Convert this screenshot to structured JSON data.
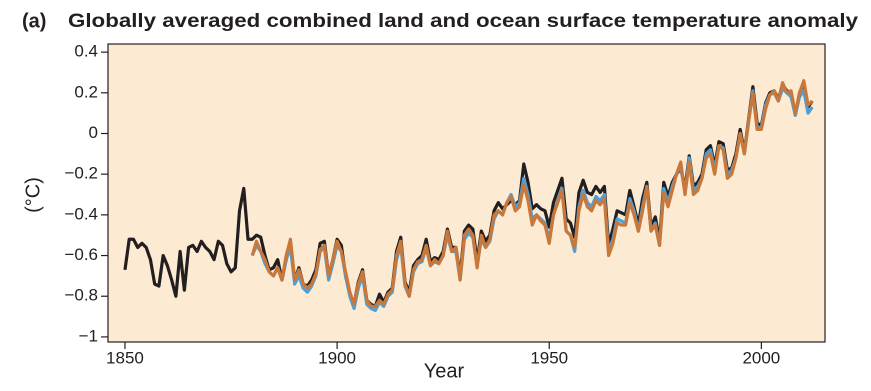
{
  "chart_data": {
    "type": "line",
    "panel_label": "(a)",
    "title": "Globally averaged combined land and ocean surface temperature anomaly",
    "xlabel": "Year",
    "ylabel": "(°C)",
    "xlim": [
      1846,
      2015
    ],
    "xticks": [
      1850,
      1900,
      1950,
      2000
    ],
    "ylim": [
      -1.025,
      0.44
    ],
    "yticks": [
      0.4,
      0.2,
      0,
      {
        "value": -0.2,
        "label": "−0.2"
      },
      {
        "value": -0.4,
        "label": "−0.4"
      },
      {
        "value": -0.6,
        "label": "−0.6"
      },
      {
        "value": -0.8,
        "label": "−0.8"
      },
      {
        "value": -1,
        "label": "−1"
      }
    ],
    "background": "#fcebd2",
    "x": [
      1850,
      1851,
      1852,
      1853,
      1854,
      1855,
      1856,
      1857,
      1858,
      1859,
      1860,
      1861,
      1862,
      1863,
      1864,
      1865,
      1866,
      1867,
      1868,
      1869,
      1870,
      1871,
      1872,
      1873,
      1874,
      1875,
      1876,
      1877,
      1878,
      1879,
      1880,
      1881,
      1882,
      1883,
      1884,
      1885,
      1886,
      1887,
      1888,
      1889,
      1890,
      1891,
      1892,
      1893,
      1894,
      1895,
      1896,
      1897,
      1898,
      1899,
      1900,
      1901,
      1902,
      1903,
      1904,
      1905,
      1906,
      1907,
      1908,
      1909,
      1910,
      1911,
      1912,
      1913,
      1914,
      1915,
      1916,
      1917,
      1918,
      1919,
      1920,
      1921,
      1922,
      1923,
      1924,
      1925,
      1926,
      1927,
      1928,
      1929,
      1930,
      1931,
      1932,
      1933,
      1934,
      1935,
      1936,
      1937,
      1938,
      1939,
      1940,
      1941,
      1942,
      1943,
      1944,
      1945,
      1946,
      1947,
      1948,
      1949,
      1950,
      1951,
      1952,
      1953,
      1954,
      1955,
      1956,
      1957,
      1958,
      1959,
      1960,
      1961,
      1962,
      1963,
      1964,
      1965,
      1966,
      1967,
      1968,
      1969,
      1970,
      1971,
      1972,
      1973,
      1974,
      1975,
      1976,
      1977,
      1978,
      1979,
      1980,
      1981,
      1982,
      1983,
      1984,
      1985,
      1986,
      1987,
      1988,
      1989,
      1990,
      1991,
      1992,
      1993,
      1994,
      1995,
      1996,
      1997,
      1998,
      1999,
      2000,
      2001,
      2002,
      2003,
      2004,
      2005,
      2006,
      2007,
      2008,
      2009,
      2010,
      2011,
      2012
    ],
    "series": [
      {
        "color": "#231f20",
        "values": [
          -0.67,
          -0.52,
          -0.52,
          -0.56,
          -0.54,
          -0.56,
          -0.62,
          -0.74,
          -0.75,
          -0.6,
          -0.65,
          -0.72,
          -0.8,
          -0.58,
          -0.77,
          -0.56,
          -0.55,
          -0.58,
          -0.53,
          -0.56,
          -0.58,
          -0.62,
          -0.53,
          -0.55,
          -0.64,
          -0.68,
          -0.66,
          -0.38,
          -0.27,
          -0.52,
          -0.52,
          -0.5,
          -0.51,
          -0.6,
          -0.67,
          -0.66,
          -0.62,
          -0.72,
          -0.62,
          -0.53,
          -0.72,
          -0.66,
          -0.74,
          -0.75,
          -0.72,
          -0.67,
          -0.54,
          -0.53,
          -0.7,
          -0.62,
          -0.52,
          -0.55,
          -0.7,
          -0.79,
          -0.84,
          -0.73,
          -0.67,
          -0.82,
          -0.84,
          -0.85,
          -0.79,
          -0.83,
          -0.78,
          -0.76,
          -0.58,
          -0.51,
          -0.73,
          -0.78,
          -0.65,
          -0.62,
          -0.6,
          -0.52,
          -0.63,
          -0.61,
          -0.62,
          -0.58,
          -0.47,
          -0.56,
          -0.56,
          -0.7,
          -0.48,
          -0.45,
          -0.47,
          -0.63,
          -0.48,
          -0.53,
          -0.5,
          -0.38,
          -0.34,
          -0.37,
          -0.35,
          -0.33,
          -0.35,
          -0.33,
          -0.15,
          -0.24,
          -0.37,
          -0.35,
          -0.37,
          -0.38,
          -0.46,
          -0.34,
          -0.28,
          -0.22,
          -0.42,
          -0.44,
          -0.51,
          -0.29,
          -0.23,
          -0.29,
          -0.3,
          -0.26,
          -0.29,
          -0.26,
          -0.55,
          -0.47,
          -0.38,
          -0.39,
          -0.4,
          -0.28,
          -0.36,
          -0.45,
          -0.32,
          -0.24,
          -0.46,
          -0.41,
          -0.53,
          -0.24,
          -0.31,
          -0.24,
          -0.2,
          -0.17,
          -0.27,
          -0.11,
          -0.26,
          -0.24,
          -0.2,
          -0.08,
          -0.06,
          -0.16,
          -0.04,
          -0.05,
          -0.18,
          -0.17,
          -0.1,
          0.02,
          -0.09,
          0.07,
          0.23,
          0.05,
          0.04,
          0.15,
          0.2,
          0.21,
          0.17,
          0.24,
          0.21,
          0.2,
          0.09,
          0.2,
          0.25,
          0.13,
          0.16
        ]
      },
      {
        "color": "#4f9fd8",
        "values": [
          null,
          null,
          null,
          null,
          null,
          null,
          null,
          null,
          null,
          null,
          null,
          null,
          null,
          null,
          null,
          null,
          null,
          null,
          null,
          null,
          null,
          null,
          null,
          null,
          null,
          null,
          null,
          null,
          null,
          null,
          -0.6,
          -0.55,
          -0.58,
          -0.64,
          -0.68,
          -0.7,
          -0.66,
          -0.72,
          -0.62,
          -0.56,
          -0.74,
          -0.7,
          -0.76,
          -0.78,
          -0.75,
          -0.7,
          -0.58,
          -0.56,
          -0.72,
          -0.64,
          -0.55,
          -0.58,
          -0.7,
          -0.8,
          -0.86,
          -0.76,
          -0.7,
          -0.84,
          -0.86,
          -0.87,
          -0.83,
          -0.85,
          -0.8,
          -0.78,
          -0.62,
          -0.55,
          -0.75,
          -0.8,
          -0.68,
          -0.64,
          -0.63,
          -0.56,
          -0.65,
          -0.63,
          -0.64,
          -0.6,
          -0.5,
          -0.58,
          -0.58,
          -0.72,
          -0.52,
          -0.49,
          -0.51,
          -0.65,
          -0.52,
          -0.56,
          -0.53,
          -0.42,
          -0.38,
          -0.4,
          -0.34,
          -0.3,
          -0.36,
          -0.34,
          -0.22,
          -0.3,
          -0.42,
          -0.4,
          -0.42,
          -0.44,
          -0.52,
          -0.4,
          -0.33,
          -0.27,
          -0.48,
          -0.5,
          -0.58,
          -0.36,
          -0.28,
          -0.34,
          -0.36,
          -0.31,
          -0.33,
          -0.3,
          -0.58,
          -0.52,
          -0.42,
          -0.43,
          -0.44,
          -0.32,
          -0.38,
          -0.48,
          -0.36,
          -0.26,
          -0.48,
          -0.44,
          -0.55,
          -0.27,
          -0.34,
          -0.26,
          -0.2,
          -0.16,
          -0.29,
          -0.12,
          -0.28,
          -0.26,
          -0.22,
          -0.1,
          -0.08,
          -0.18,
          -0.06,
          -0.07,
          -0.2,
          -0.18,
          -0.12,
          0.0,
          -0.1,
          0.06,
          0.21,
          0.03,
          0.03,
          0.14,
          0.19,
          0.2,
          0.16,
          0.22,
          0.2,
          0.18,
          0.09,
          0.18,
          0.21,
          0.1,
          0.13
        ]
      },
      {
        "color": "#c8783a",
        "values": [
          null,
          null,
          null,
          null,
          null,
          null,
          null,
          null,
          null,
          null,
          null,
          null,
          null,
          null,
          null,
          null,
          null,
          null,
          null,
          null,
          null,
          null,
          null,
          null,
          null,
          null,
          null,
          null,
          null,
          null,
          -0.6,
          -0.53,
          -0.58,
          -0.62,
          -0.68,
          -0.7,
          -0.66,
          -0.72,
          -0.6,
          -0.52,
          -0.72,
          -0.67,
          -0.74,
          -0.76,
          -0.74,
          -0.69,
          -0.57,
          -0.55,
          -0.7,
          -0.62,
          -0.53,
          -0.58,
          -0.68,
          -0.78,
          -0.84,
          -0.74,
          -0.68,
          -0.82,
          -0.85,
          -0.85,
          -0.82,
          -0.84,
          -0.79,
          -0.77,
          -0.6,
          -0.53,
          -0.74,
          -0.8,
          -0.67,
          -0.63,
          -0.62,
          -0.55,
          -0.65,
          -0.62,
          -0.64,
          -0.6,
          -0.48,
          -0.58,
          -0.56,
          -0.72,
          -0.5,
          -0.47,
          -0.5,
          -0.66,
          -0.5,
          -0.56,
          -0.52,
          -0.4,
          -0.38,
          -0.4,
          -0.34,
          -0.31,
          -0.38,
          -0.36,
          -0.25,
          -0.33,
          -0.45,
          -0.4,
          -0.43,
          -0.45,
          -0.54,
          -0.4,
          -0.34,
          -0.28,
          -0.48,
          -0.5,
          -0.56,
          -0.38,
          -0.3,
          -0.36,
          -0.38,
          -0.33,
          -0.35,
          -0.32,
          -0.6,
          -0.54,
          -0.44,
          -0.45,
          -0.45,
          -0.34,
          -0.4,
          -0.48,
          -0.38,
          -0.26,
          -0.48,
          -0.45,
          -0.55,
          -0.29,
          -0.36,
          -0.28,
          -0.2,
          -0.14,
          -0.3,
          -0.14,
          -0.3,
          -0.28,
          -0.22,
          -0.12,
          -0.1,
          -0.2,
          -0.06,
          -0.08,
          -0.22,
          -0.2,
          -0.12,
          0.0,
          -0.1,
          0.06,
          0.2,
          0.02,
          0.02,
          0.12,
          0.19,
          0.21,
          0.16,
          0.25,
          0.2,
          0.21,
          0.1,
          0.2,
          0.26,
          0.14,
          0.16
        ]
      }
    ]
  }
}
